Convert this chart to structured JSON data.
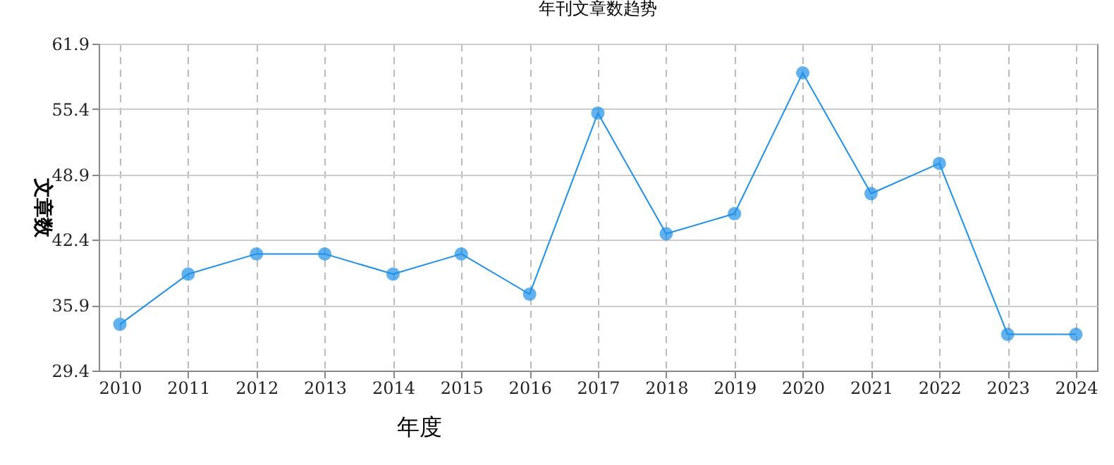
{
  "chart_data": {
    "type": "line",
    "title": "年刊文章数趋势",
    "xlabel": "年度",
    "ylabel": "文章数",
    "categories": [
      "2010",
      "2011",
      "2012",
      "2013",
      "2014",
      "2015",
      "2016",
      "2017",
      "2018",
      "2019",
      "2020",
      "2021",
      "2022",
      "2023",
      "2024"
    ],
    "series": [
      {
        "color": "#1e90e8",
        "values": [
          34,
          39,
          41,
          41,
          39,
          41,
          37,
          55,
          43,
          45,
          59,
          47,
          50,
          33,
          33
        ]
      }
    ],
    "ylim": [
      29.4,
      61.9
    ],
    "yticks": [
      29.4,
      35.9,
      42.4,
      48.9,
      55.4,
      61.9
    ],
    "grid": true,
    "marker": "circle",
    "line_style": "solid"
  }
}
